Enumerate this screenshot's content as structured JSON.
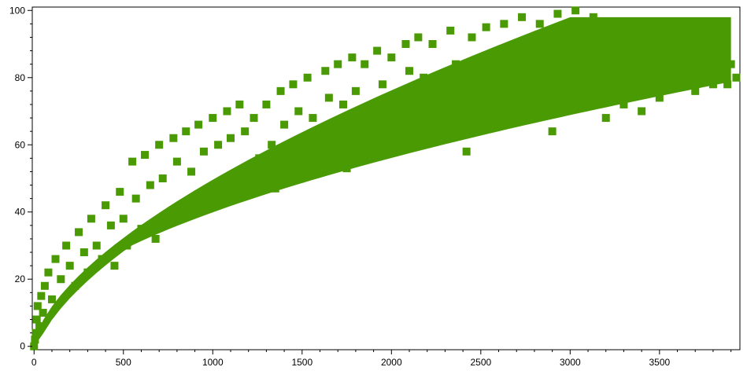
{
  "chart_data": {
    "type": "scatter",
    "title": "",
    "xlabel": "",
    "ylabel": "",
    "xlim": [
      -10,
      3950
    ],
    "ylim": [
      -1,
      101
    ],
    "x_ticks": [
      0,
      500,
      1000,
      1500,
      2000,
      2500,
      3000,
      3500
    ],
    "y_ticks": [
      0,
      20,
      40,
      60,
      80,
      100
    ],
    "x_minor_step": 100,
    "y_minor_step": 4,
    "grid": false,
    "legend": "none",
    "marker": "square",
    "color": "#4a9a03",
    "series": [
      {
        "points": [
          [
            0,
            0
          ],
          [
            5,
            2
          ],
          [
            10,
            4
          ],
          [
            15,
            8
          ],
          [
            20,
            12
          ],
          [
            30,
            6
          ],
          [
            40,
            15
          ],
          [
            50,
            10
          ],
          [
            60,
            18
          ],
          [
            80,
            22
          ],
          [
            100,
            14
          ],
          [
            120,
            26
          ],
          [
            150,
            20
          ],
          [
            180,
            30
          ],
          [
            200,
            24
          ],
          [
            230,
            18
          ],
          [
            250,
            34
          ],
          [
            280,
            28
          ],
          [
            300,
            22
          ],
          [
            320,
            38
          ],
          [
            350,
            30
          ],
          [
            380,
            26
          ],
          [
            400,
            42
          ],
          [
            430,
            36
          ],
          [
            450,
            24
          ],
          [
            480,
            46
          ],
          [
            500,
            38
          ],
          [
            520,
            30
          ],
          [
            550,
            55
          ],
          [
            570,
            44
          ],
          [
            600,
            35
          ],
          [
            620,
            57
          ],
          [
            650,
            48
          ],
          [
            680,
            32
          ],
          [
            700,
            60
          ],
          [
            720,
            50
          ],
          [
            750,
            38
          ],
          [
            780,
            62
          ],
          [
            800,
            55
          ],
          [
            820,
            40
          ],
          [
            850,
            64
          ],
          [
            880,
            52
          ],
          [
            900,
            44
          ],
          [
            920,
            66
          ],
          [
            950,
            58
          ],
          [
            980,
            42
          ],
          [
            1000,
            68
          ],
          [
            1030,
            60
          ],
          [
            1060,
            45
          ],
          [
            1080,
            70
          ],
          [
            1100,
            62
          ],
          [
            1130,
            48
          ],
          [
            1150,
            72
          ],
          [
            1180,
            64
          ],
          [
            1200,
            50
          ],
          [
            1230,
            68
          ],
          [
            1260,
            56
          ],
          [
            1300,
            72
          ],
          [
            1330,
            60
          ],
          [
            1350,
            47
          ],
          [
            1380,
            76
          ],
          [
            1400,
            66
          ],
          [
            1420,
            52
          ],
          [
            1450,
            78
          ],
          [
            1480,
            70
          ],
          [
            1500,
            58
          ],
          [
            1530,
            80
          ],
          [
            1560,
            68
          ],
          [
            1600,
            55
          ],
          [
            1630,
            82
          ],
          [
            1650,
            74
          ],
          [
            1680,
            60
          ],
          [
            1700,
            84
          ],
          [
            1730,
            72
          ],
          [
            1750,
            53
          ],
          [
            1780,
            86
          ],
          [
            1800,
            76
          ],
          [
            1830,
            64
          ],
          [
            1850,
            84
          ],
          [
            1880,
            70
          ],
          [
            1900,
            58
          ],
          [
            1920,
            88
          ],
          [
            1950,
            78
          ],
          [
            1980,
            66
          ],
          [
            2000,
            86
          ],
          [
            2030,
            74
          ],
          [
            2050,
            60
          ],
          [
            2080,
            90
          ],
          [
            2100,
            82
          ],
          [
            2130,
            70
          ],
          [
            2150,
            92
          ],
          [
            2180,
            80
          ],
          [
            2200,
            64
          ],
          [
            2230,
            90
          ],
          [
            2260,
            78
          ],
          [
            2300,
            68
          ],
          [
            2330,
            94
          ],
          [
            2360,
            84
          ],
          [
            2400,
            72
          ],
          [
            2420,
            58
          ],
          [
            2450,
            92
          ],
          [
            2480,
            82
          ],
          [
            2500,
            74
          ],
          [
            2530,
            95
          ],
          [
            2560,
            86
          ],
          [
            2600,
            66
          ],
          [
            2630,
            96
          ],
          [
            2660,
            80
          ],
          [
            2700,
            70
          ],
          [
            2730,
            98
          ],
          [
            2760,
            88
          ],
          [
            2800,
            74
          ],
          [
            2830,
            96
          ],
          [
            2860,
            84
          ],
          [
            2900,
            64
          ],
          [
            2930,
            99
          ],
          [
            2960,
            90
          ],
          [
            3000,
            78
          ],
          [
            3030,
            100
          ],
          [
            3060,
            88
          ],
          [
            3100,
            72
          ],
          [
            3130,
            98
          ],
          [
            3160,
            84
          ],
          [
            3200,
            68
          ],
          [
            3230,
            94
          ],
          [
            3260,
            86
          ],
          [
            3300,
            72
          ],
          [
            3330,
            90
          ],
          [
            3360,
            80
          ],
          [
            3400,
            70
          ],
          [
            3430,
            88
          ],
          [
            3460,
            82
          ],
          [
            3500,
            74
          ],
          [
            3530,
            90
          ],
          [
            3560,
            84
          ],
          [
            3600,
            78
          ],
          [
            3630,
            86
          ],
          [
            3660,
            80
          ],
          [
            3700,
            76
          ],
          [
            3730,
            84
          ],
          [
            3760,
            80
          ],
          [
            3800,
            78
          ],
          [
            3830,
            85
          ],
          [
            3860,
            82
          ],
          [
            3880,
            78
          ],
          [
            3900,
            84
          ],
          [
            3930,
            80
          ]
        ]
      }
    ]
  }
}
